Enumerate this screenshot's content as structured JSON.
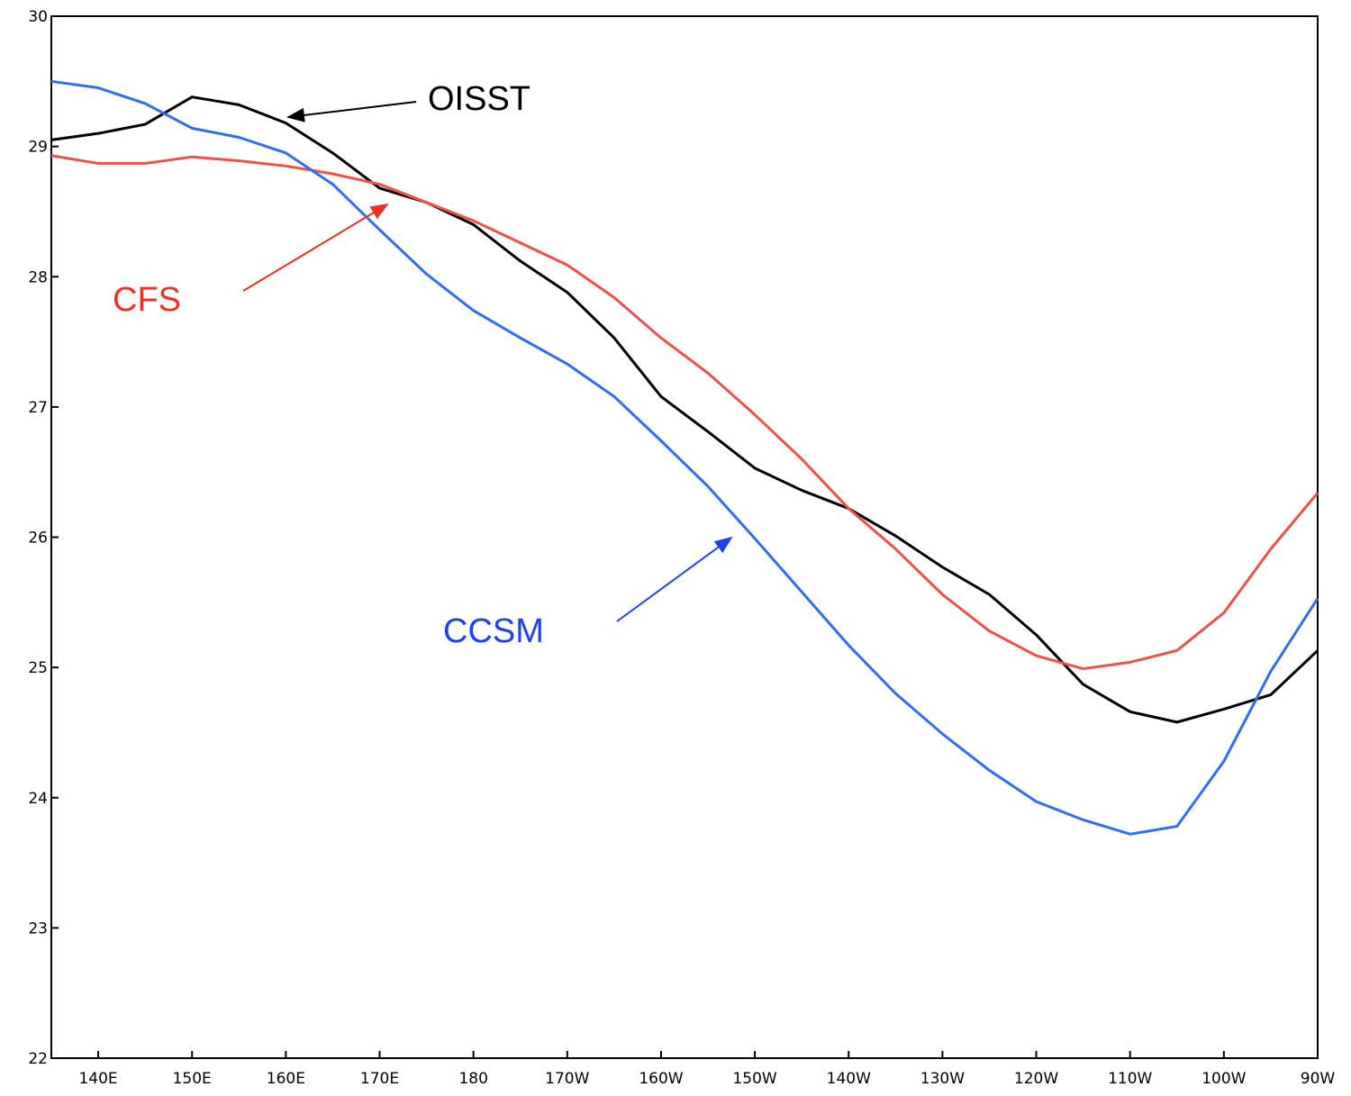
{
  "chart_data": {
    "type": "line",
    "x": [
      135,
      140,
      145,
      150,
      155,
      160,
      165,
      170,
      175,
      180,
      185,
      190,
      195,
      200,
      205,
      210,
      215,
      220,
      225,
      230,
      235,
      240,
      245,
      250,
      255,
      260,
      265,
      270
    ],
    "series": [
      {
        "name": "OISST",
        "color": "#000000",
        "values": [
          29.05,
          29.1,
          29.17,
          29.38,
          29.32,
          29.18,
          28.95,
          28.68,
          28.57,
          28.4,
          28.12,
          27.88,
          27.53,
          27.08,
          26.81,
          26.53,
          26.36,
          26.22,
          26.01,
          25.77,
          25.56,
          25.25,
          24.87,
          24.66,
          24.58,
          24.68,
          24.79,
          25.13
        ]
      },
      {
        "name": "CFS",
        "color": "#f0504a",
        "values": [
          28.93,
          28.87,
          28.87,
          28.92,
          28.89,
          28.85,
          28.79,
          28.71,
          28.57,
          28.43,
          28.26,
          28.09,
          27.84,
          27.53,
          27.26,
          26.94,
          26.6,
          26.22,
          25.91,
          25.56,
          25.28,
          25.09,
          24.99,
          25.04,
          25.13,
          25.42,
          25.91,
          26.34
        ]
      },
      {
        "name": "CCSM",
        "color": "#2f6ef0",
        "values": [
          29.5,
          29.45,
          29.33,
          29.14,
          29.07,
          28.95,
          28.71,
          28.36,
          28.02,
          27.74,
          27.53,
          27.33,
          27.08,
          26.74,
          26.39,
          25.99,
          25.58,
          25.17,
          24.8,
          24.49,
          24.21,
          23.97,
          23.83,
          23.72,
          23.78,
          24.28,
          24.97,
          25.53
        ]
      }
    ],
    "xlim": [
      135,
      270
    ],
    "xticks": [
      {
        "value": 140,
        "label": "140E"
      },
      {
        "value": 150,
        "label": "150E"
      },
      {
        "value": 160,
        "label": "160E"
      },
      {
        "value": 170,
        "label": "170E"
      },
      180,
      {
        "value": 190,
        "label": "170W"
      },
      {
        "value": 200,
        "label": "160W"
      },
      {
        "value": 210,
        "label": "150W"
      },
      {
        "value": 220,
        "label": "140W"
      },
      {
        "value": 230,
        "label": "130W"
      },
      {
        "value": 240,
        "label": "120W"
      },
      {
        "value": 250,
        "label": "110W"
      },
      {
        "value": 260,
        "label": "100W"
      },
      {
        "value": 270,
        "label": "90W"
      }
    ],
    "ylim": [
      22,
      30
    ],
    "yticks": [
      22,
      23,
      24,
      25,
      26,
      27,
      28,
      29,
      30
    ]
  }
}
